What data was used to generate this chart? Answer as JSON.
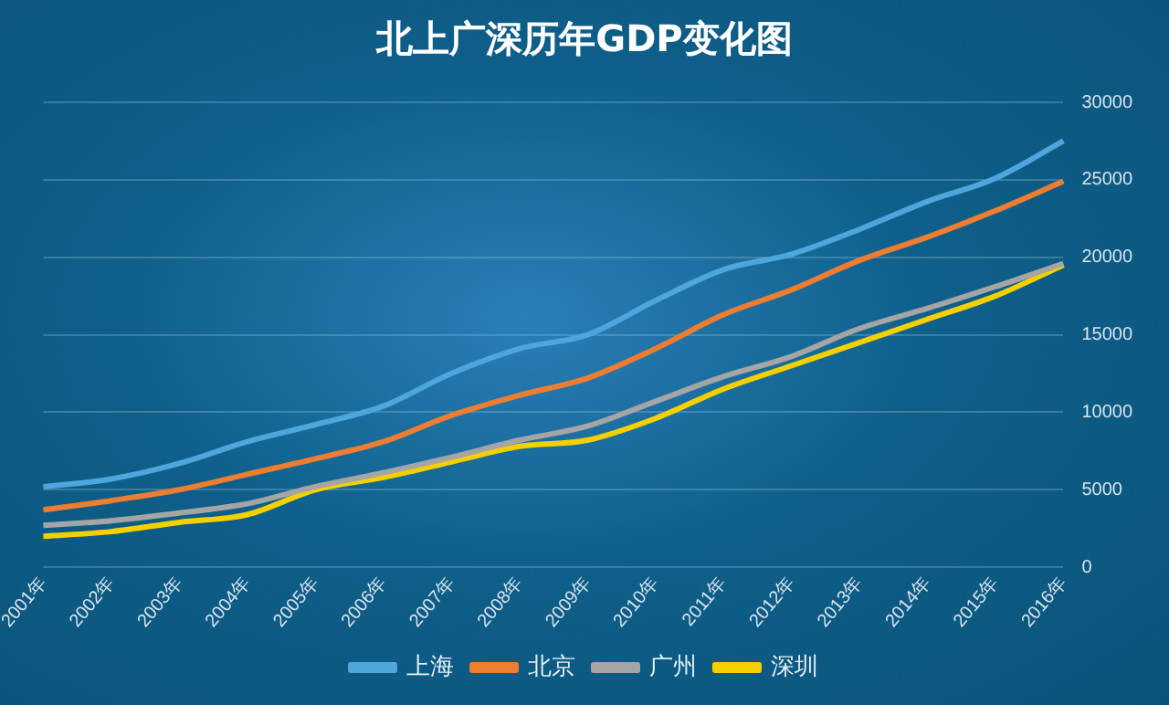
{
  "chart_data": {
    "type": "line",
    "title": "北上广深历年GDP变化图",
    "categories": [
      "2001年",
      "2002年",
      "2003年",
      "2004年",
      "2005年",
      "2006年",
      "2007年",
      "2008年",
      "2009年",
      "2010年",
      "2011年",
      "2012年",
      "2013年",
      "2014年",
      "2015年",
      "2016年"
    ],
    "series": [
      {
        "name": "上海",
        "color": "#4ea6dc",
        "values": [
          5200,
          5700,
          6700,
          8100,
          9200,
          10400,
          12500,
          14100,
          15000,
          17200,
          19200,
          20200,
          21800,
          23600,
          25100,
          27500
        ]
      },
      {
        "name": "北京",
        "color": "#ed7d31",
        "values": [
          3700,
          4300,
          5000,
          6000,
          7000,
          8100,
          9800,
          11100,
          12200,
          14100,
          16300,
          17900,
          19800,
          21300,
          23000,
          24900
        ]
      },
      {
        "name": "广州",
        "color": "#a5a5a5",
        "values": [
          2700,
          3000,
          3500,
          4100,
          5200,
          6100,
          7100,
          8200,
          9100,
          10700,
          12300,
          13600,
          15400,
          16700,
          18100,
          19600
        ]
      },
      {
        "name": "深圳",
        "color": "#f5d000",
        "values": [
          2000,
          2300,
          2900,
          3400,
          5000,
          5800,
          6800,
          7800,
          8200,
          9600,
          11500,
          13000,
          14500,
          16000,
          17500,
          19500
        ]
      }
    ],
    "ylim": [
      0,
      30000
    ],
    "yticks": [
      0,
      5000,
      10000,
      15000,
      20000,
      25000,
      30000
    ],
    "grid": "y",
    "legend": "bottom",
    "marker": "none",
    "line_style": "solid"
  }
}
